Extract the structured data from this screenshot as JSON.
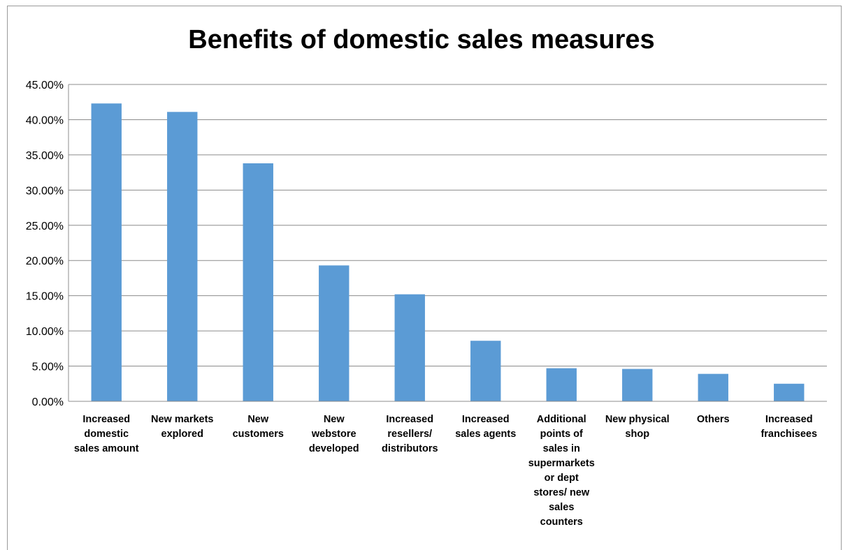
{
  "chart_data": {
    "type": "bar",
    "title": "Benefits of domestic sales measures",
    "xlabel": "",
    "ylabel": "",
    "ylim": [
      0,
      45
    ],
    "y_ticks": [
      "0.00%",
      "5.00%",
      "10.00%",
      "15.00%",
      "20.00%",
      "25.00%",
      "30.00%",
      "35.00%",
      "40.00%",
      "45.00%"
    ],
    "y_tick_values": [
      0,
      5,
      10,
      15,
      20,
      25,
      30,
      35,
      40,
      45
    ],
    "grid": true,
    "legend": "none",
    "bar_color": "#5b9bd5",
    "categories": [
      [
        "Increased",
        "domestic",
        "sales amount"
      ],
      [
        "New markets",
        "explored"
      ],
      [
        "New",
        "customers"
      ],
      [
        "New",
        "webstore",
        "developed"
      ],
      [
        "Increased",
        "resellers/",
        "distributors"
      ],
      [
        "Increased",
        "sales agents"
      ],
      [
        "Additional",
        "points of",
        "sales in",
        "supermarkets",
        "or dept",
        "stores/ new",
        "sales",
        "counters"
      ],
      [
        "New physical",
        "shop"
      ],
      [
        "Others"
      ],
      [
        "Increased",
        "franchisees"
      ]
    ],
    "values": [
      42.3,
      41.1,
      33.8,
      19.3,
      15.2,
      8.6,
      4.7,
      4.6,
      3.9,
      2.5
    ]
  }
}
